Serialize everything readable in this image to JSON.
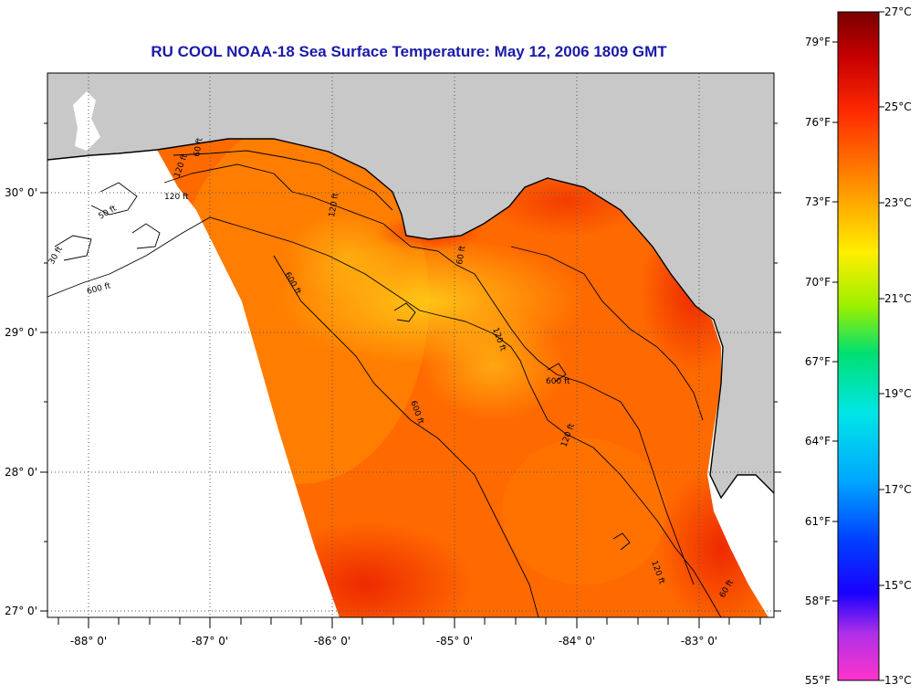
{
  "title": "RU COOL  NOAA-18  Sea Surface Temperature:  May 12, 2006 1809 GMT",
  "map": {
    "lon_labels": [
      "-88° 0'",
      "-87° 0'",
      "-86° 0'",
      "-85° 0'",
      "-84° 0'",
      "-83° 0'"
    ],
    "lat_labels": [
      "30° 0'",
      "29° 0'",
      "28° 0'",
      "27° 0'"
    ],
    "lon_range": [
      -88.33,
      -82.4
    ],
    "lat_range": [
      26.98,
      30.88
    ],
    "colors": {
      "land": "#c8c8c8",
      "grid": "#555555",
      "frame": "#000000"
    }
  },
  "contours": {
    "labels": [
      "60 ft",
      "120 ft",
      "120 ft",
      "600 ft",
      "30 ft",
      "50 ft",
      "600 ft",
      "120 ft",
      "60 ft",
      "600 ft",
      "120 ft",
      "600 ft",
      "120 ft",
      "120 ft",
      "60 ft"
    ]
  },
  "colorbar": {
    "fahrenheit_labels": [
      "79°F",
      "76°F",
      "73°F",
      "70°F",
      "67°F",
      "64°F",
      "61°F",
      "58°F",
      "55°F"
    ],
    "celsius_labels": [
      "27°C",
      "25°C",
      "23°C",
      "21°C",
      "19°C",
      "17°C",
      "15°C",
      "13°C"
    ],
    "min_c": 13,
    "max_c": 27
  }
}
